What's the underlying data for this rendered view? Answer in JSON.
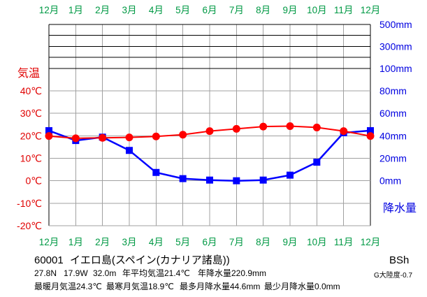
{
  "station": {
    "id": "60001",
    "name": "イエロ島(スペイン(カナリア諸島))",
    "climate_class": "BSh",
    "latitude": "27.8N",
    "longitude": "17.9W",
    "elevation": "32.0m",
    "annual_mean_temp": "年平均気温21.4℃",
    "annual_precip": "年降水量220.9mm",
    "continentality": "G大陸度-0.7",
    "warmest_month_temp": "最暖月気温24.3℃",
    "coldest_month_temp": "最寒月気温18.9℃",
    "wettest_month_precip": "最多月降水量44.6mm",
    "driest_month_precip": "最少月降水量0.0mm"
  },
  "chart_data": {
    "type": "line",
    "grid": true,
    "month_label_color": "#009944",
    "categories": [
      "12月",
      "1月",
      "2月",
      "3月",
      "4月",
      "5月",
      "6月",
      "7月",
      "8月",
      "9月",
      "10月",
      "11月",
      "12月"
    ],
    "series": [
      {
        "axis": "left",
        "marker": "circle",
        "color": "#ff0000",
        "values": [
          19.9,
          18.9,
          19.1,
          19.3,
          19.7,
          20.5,
          22.1,
          23.1,
          24.1,
          24.3,
          23.7,
          22.1,
          19.9
        ]
      },
      {
        "axis": "right",
        "marker": "square",
        "color": "#0000ff",
        "values": [
          44.6,
          35.8,
          38.8,
          27.0,
          7.4,
          1.9,
          0.6,
          0.0,
          0.6,
          5.0,
          16.5,
          42.7,
          44.6
        ]
      }
    ],
    "left_axis": {
      "label": "気温",
      "color": "#e00000",
      "ylim": [
        -20,
        40
      ],
      "ticks": [
        {
          "value": 40,
          "label": "40℃"
        },
        {
          "value": 30,
          "label": "30℃"
        },
        {
          "value": 20,
          "label": "20℃"
        },
        {
          "value": 10,
          "label": "10℃"
        },
        {
          "value": 0,
          "label": "0℃"
        },
        {
          "value": -10,
          "label": "-10℃"
        },
        {
          "value": -20,
          "label": "-20℃"
        }
      ]
    },
    "right_axis": {
      "label": "降水量",
      "color": "#0000e0",
      "ylim": [
        0,
        500
      ],
      "scale": "piecewise-linear",
      "scale_break": 100,
      "ticks": [
        {
          "value": 500,
          "label": "500mm"
        },
        {
          "value": 300,
          "label": "300mm"
        },
        {
          "value": 100,
          "label": "100mm"
        },
        {
          "value": 80,
          "label": "80mm"
        },
        {
          "value": 60,
          "label": "60mm"
        },
        {
          "value": 40,
          "label": "40mm"
        },
        {
          "value": 20,
          "label": "20mm"
        },
        {
          "value": 0,
          "label": "0mm"
        }
      ]
    }
  }
}
